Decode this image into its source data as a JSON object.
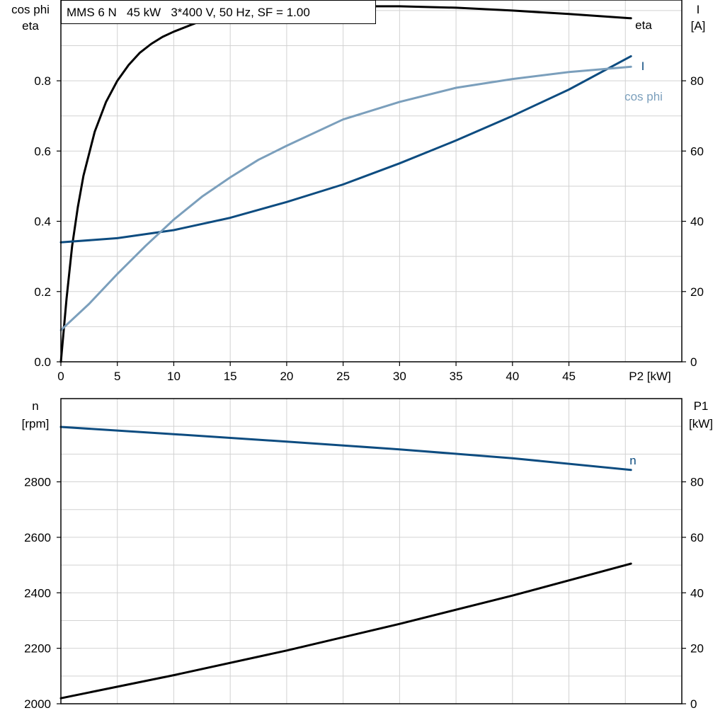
{
  "title": "MMS 6 N   45 kW   3*400 V, 50 Hz, SF = 1.00",
  "colors": {
    "eta": "#000000",
    "current": "#0d4c80",
    "cosphi": "#7b9fbc",
    "speed": "#0d4c80",
    "p1": "#000000"
  },
  "chart_data": [
    {
      "type": "line",
      "grid": true,
      "xlabel": "P2 [kW]",
      "xlim": [
        0,
        55
      ],
      "x_ticks": [
        "0",
        "5",
        "10",
        "15",
        "20",
        "25",
        "30",
        "35",
        "40",
        "45"
      ],
      "ylabel_left": [
        "cos phi",
        "eta"
      ],
      "ylim_left": [
        0,
        1.03
      ],
      "y_ticks_left": [
        "0.0",
        "0.2",
        "0.4",
        "0.6",
        "0.8"
      ],
      "ylabel_right": [
        "I",
        "[A]"
      ],
      "ylim_right": [
        0,
        103
      ],
      "y_ticks_right": [
        "0",
        "20",
        "40",
        "60",
        "80"
      ],
      "series": [
        {
          "name": "eta",
          "axis": "left",
          "color": "#000000",
          "x": [
            0,
            0.5,
            1,
            1.5,
            2,
            3,
            4,
            5,
            6,
            7,
            8,
            9,
            10,
            12,
            15,
            20,
            25,
            30,
            35,
            40,
            45,
            50.5
          ],
          "y": [
            0,
            0.18,
            0.33,
            0.44,
            0.53,
            0.655,
            0.74,
            0.8,
            0.845,
            0.88,
            0.905,
            0.925,
            0.94,
            0.965,
            0.99,
            1.008,
            1.012,
            1.012,
            1.008,
            1.0,
            0.99,
            0.978
          ]
        },
        {
          "name": "I",
          "axis": "right",
          "color": "#0d4c80",
          "x": [
            0,
            5,
            10,
            15,
            20,
            25,
            30,
            35,
            40,
            45,
            50.5
          ],
          "y": [
            34,
            35.2,
            37.5,
            41,
            45.5,
            50.5,
            56.5,
            63,
            70,
            77.5,
            87
          ]
        },
        {
          "name": "cos phi",
          "axis": "left",
          "color": "#7b9fbc",
          "x": [
            0,
            2.5,
            5,
            7.5,
            10,
            12.5,
            15,
            17.5,
            20,
            25,
            30,
            35,
            40,
            45,
            50.5
          ],
          "y": [
            0.09,
            0.165,
            0.25,
            0.33,
            0.405,
            0.47,
            0.525,
            0.575,
            0.615,
            0.69,
            0.74,
            0.78,
            0.805,
            0.825,
            0.84
          ]
        }
      ]
    },
    {
      "type": "line",
      "grid": true,
      "xlim": [
        0,
        55
      ],
      "ylabel_left": [
        "n",
        "[rpm]"
      ],
      "ylim_left": [
        2000,
        3100
      ],
      "y_ticks_left": [
        "2000",
        "2200",
        "2400",
        "2600",
        "2800"
      ],
      "ylabel_right": [
        "P1",
        "[kW]"
      ],
      "ylim_right": [
        0,
        110
      ],
      "y_ticks_right": [
        "0",
        "20",
        "40",
        "60",
        "80"
      ],
      "series": [
        {
          "name": "n",
          "axis": "left",
          "color": "#0d4c80",
          "x": [
            0,
            10,
            20,
            30,
            40,
            50.5
          ],
          "y": [
            2998,
            2972,
            2945,
            2917,
            2885,
            2843
          ]
        },
        {
          "name": "",
          "axis": "right",
          "color": "#000000",
          "x": [
            0,
            10,
            20,
            30,
            40,
            50.5
          ],
          "y": [
            2,
            10.3,
            19.2,
            28.8,
            39,
            50.5
          ]
        }
      ]
    }
  ]
}
